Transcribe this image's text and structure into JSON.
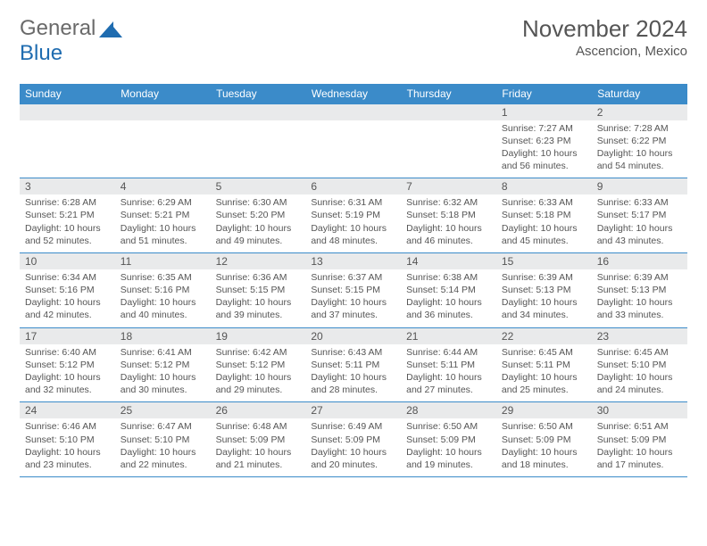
{
  "logo": {
    "text_gray": "General",
    "text_blue": "Blue"
  },
  "title": "November 2024",
  "location": "Ascencion, Mexico",
  "colors": {
    "header_bg": "#3b8bc9",
    "header_text": "#ffffff",
    "daynum_bg": "#e9eaeb",
    "text": "#555555",
    "logo_gray": "#6a6a6a",
    "logo_blue": "#1f6cb0",
    "rule": "#3b8bc9",
    "background": "#ffffff"
  },
  "weekday_headers": [
    "Sunday",
    "Monday",
    "Tuesday",
    "Wednesday",
    "Thursday",
    "Friday",
    "Saturday"
  ],
  "grid": [
    [
      {
        "blank": true
      },
      {
        "blank": true
      },
      {
        "blank": true
      },
      {
        "blank": true
      },
      {
        "blank": true
      },
      {
        "n": "1",
        "sunrise": "7:27 AM",
        "sunset": "6:23 PM",
        "daylight": "10 hours and 56 minutes."
      },
      {
        "n": "2",
        "sunrise": "7:28 AM",
        "sunset": "6:22 PM",
        "daylight": "10 hours and 54 minutes."
      }
    ],
    [
      {
        "n": "3",
        "sunrise": "6:28 AM",
        "sunset": "5:21 PM",
        "daylight": "10 hours and 52 minutes."
      },
      {
        "n": "4",
        "sunrise": "6:29 AM",
        "sunset": "5:21 PM",
        "daylight": "10 hours and 51 minutes."
      },
      {
        "n": "5",
        "sunrise": "6:30 AM",
        "sunset": "5:20 PM",
        "daylight": "10 hours and 49 minutes."
      },
      {
        "n": "6",
        "sunrise": "6:31 AM",
        "sunset": "5:19 PM",
        "daylight": "10 hours and 48 minutes."
      },
      {
        "n": "7",
        "sunrise": "6:32 AM",
        "sunset": "5:18 PM",
        "daylight": "10 hours and 46 minutes."
      },
      {
        "n": "8",
        "sunrise": "6:33 AM",
        "sunset": "5:18 PM",
        "daylight": "10 hours and 45 minutes."
      },
      {
        "n": "9",
        "sunrise": "6:33 AM",
        "sunset": "5:17 PM",
        "daylight": "10 hours and 43 minutes."
      }
    ],
    [
      {
        "n": "10",
        "sunrise": "6:34 AM",
        "sunset": "5:16 PM",
        "daylight": "10 hours and 42 minutes."
      },
      {
        "n": "11",
        "sunrise": "6:35 AM",
        "sunset": "5:16 PM",
        "daylight": "10 hours and 40 minutes."
      },
      {
        "n": "12",
        "sunrise": "6:36 AM",
        "sunset": "5:15 PM",
        "daylight": "10 hours and 39 minutes."
      },
      {
        "n": "13",
        "sunrise": "6:37 AM",
        "sunset": "5:15 PM",
        "daylight": "10 hours and 37 minutes."
      },
      {
        "n": "14",
        "sunrise": "6:38 AM",
        "sunset": "5:14 PM",
        "daylight": "10 hours and 36 minutes."
      },
      {
        "n": "15",
        "sunrise": "6:39 AM",
        "sunset": "5:13 PM",
        "daylight": "10 hours and 34 minutes."
      },
      {
        "n": "16",
        "sunrise": "6:39 AM",
        "sunset": "5:13 PM",
        "daylight": "10 hours and 33 minutes."
      }
    ],
    [
      {
        "n": "17",
        "sunrise": "6:40 AM",
        "sunset": "5:12 PM",
        "daylight": "10 hours and 32 minutes."
      },
      {
        "n": "18",
        "sunrise": "6:41 AM",
        "sunset": "5:12 PM",
        "daylight": "10 hours and 30 minutes."
      },
      {
        "n": "19",
        "sunrise": "6:42 AM",
        "sunset": "5:12 PM",
        "daylight": "10 hours and 29 minutes."
      },
      {
        "n": "20",
        "sunrise": "6:43 AM",
        "sunset": "5:11 PM",
        "daylight": "10 hours and 28 minutes."
      },
      {
        "n": "21",
        "sunrise": "6:44 AM",
        "sunset": "5:11 PM",
        "daylight": "10 hours and 27 minutes."
      },
      {
        "n": "22",
        "sunrise": "6:45 AM",
        "sunset": "5:11 PM",
        "daylight": "10 hours and 25 minutes."
      },
      {
        "n": "23",
        "sunrise": "6:45 AM",
        "sunset": "5:10 PM",
        "daylight": "10 hours and 24 minutes."
      }
    ],
    [
      {
        "n": "24",
        "sunrise": "6:46 AM",
        "sunset": "5:10 PM",
        "daylight": "10 hours and 23 minutes."
      },
      {
        "n": "25",
        "sunrise": "6:47 AM",
        "sunset": "5:10 PM",
        "daylight": "10 hours and 22 minutes."
      },
      {
        "n": "26",
        "sunrise": "6:48 AM",
        "sunset": "5:09 PM",
        "daylight": "10 hours and 21 minutes."
      },
      {
        "n": "27",
        "sunrise": "6:49 AM",
        "sunset": "5:09 PM",
        "daylight": "10 hours and 20 minutes."
      },
      {
        "n": "28",
        "sunrise": "6:50 AM",
        "sunset": "5:09 PM",
        "daylight": "10 hours and 19 minutes."
      },
      {
        "n": "29",
        "sunrise": "6:50 AM",
        "sunset": "5:09 PM",
        "daylight": "10 hours and 18 minutes."
      },
      {
        "n": "30",
        "sunrise": "6:51 AM",
        "sunset": "5:09 PM",
        "daylight": "10 hours and 17 minutes."
      }
    ]
  ],
  "labels": {
    "sunrise": "Sunrise:",
    "sunset": "Sunset:",
    "daylight": "Daylight:"
  }
}
